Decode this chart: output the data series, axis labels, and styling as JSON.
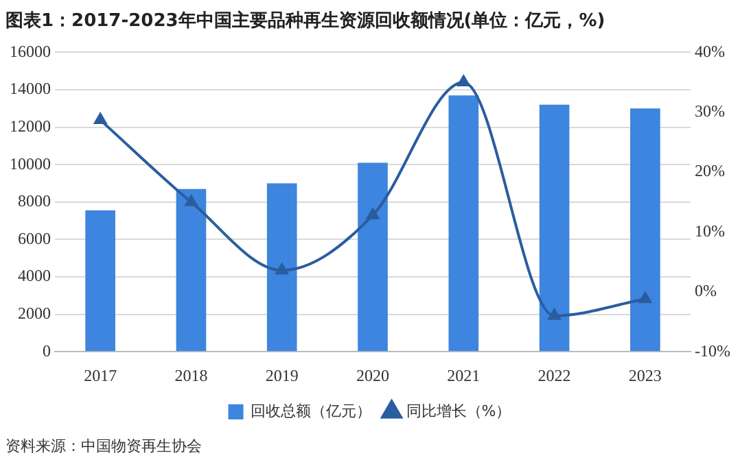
{
  "chart_data": {
    "type": "bar",
    "title": "图表1：2017-2023年中国主要品种再生资源回收额情况(单位：亿元，%)",
    "categories": [
      "2017",
      "2018",
      "2019",
      "2020",
      "2021",
      "2022",
      "2023"
    ],
    "series": [
      {
        "name": "回收总额（亿元）",
        "color": "#3d85de",
        "values": [
          7550,
          8700,
          9000,
          10100,
          13700,
          13200,
          13000
        ]
      },
      {
        "name": "同比增长（%）",
        "type": "line",
        "axis": "y2",
        "color": "#2a5d9f",
        "marker": "triangle",
        "values": [
          28.7,
          15,
          3.6,
          12.8,
          35,
          -4,
          -1.2
        ]
      }
    ],
    "ylim": [
      0,
      16000
    ],
    "yticks": [
      0,
      2000,
      4000,
      6000,
      8000,
      10000,
      12000,
      14000,
      16000
    ],
    "y2lim": [
      -10,
      40
    ],
    "y2ticks": [
      {
        "value": -10,
        "label": "-10%"
      },
      {
        "value": 0,
        "label": "0%"
      },
      {
        "value": 10,
        "label": "10%"
      },
      {
        "value": 20,
        "label": "20%"
      },
      {
        "value": 30,
        "label": "30%"
      },
      {
        "value": 40,
        "label": "40%"
      }
    ],
    "grid": "y",
    "legend": "bottom",
    "annotations": [
      "资料来源：中国物资再生协会"
    ]
  }
}
